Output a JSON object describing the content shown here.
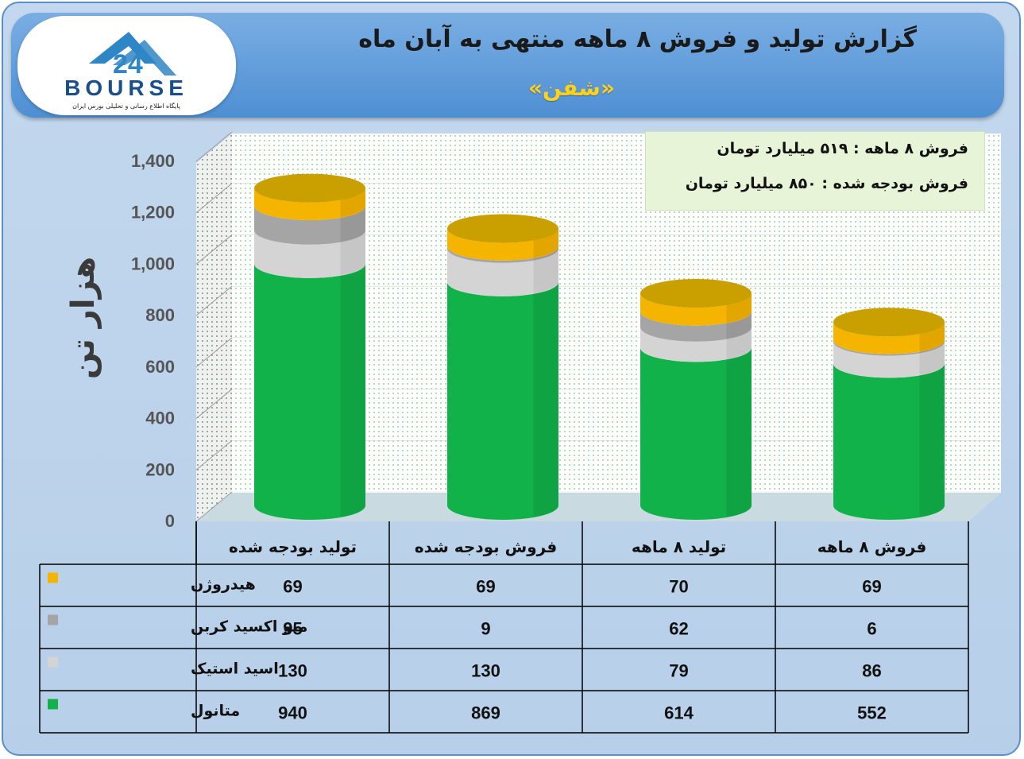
{
  "header": {
    "title": "گزارش تولید و فروش ۸ ماهه منتهی به آبان ماه",
    "subtitle": "«شفن»"
  },
  "logo": {
    "text": "BOURSE",
    "tagline": "پایگاه اطلاع رسانی و تحلیلی بورس ایران",
    "numeral": "24"
  },
  "info": {
    "line1": "فروش ۸ ماهه : ۵۱۹ میلیارد تومان",
    "line2": "فروش بودجه شده : ۸۵۰ میلیارد تومان"
  },
  "colors": {
    "methanol": "#12b24b",
    "acetic": "#d4d4d4",
    "co": "#a5a5a5",
    "hydrogen": "#f4b400",
    "hydrogen_top": "#c9a000"
  },
  "chart_data": {
    "type": "bar",
    "stacked": true,
    "ylabel": "هزار تن",
    "ylim": [
      0,
      1400
    ],
    "yticks": [
      "0",
      "200",
      "400",
      "600",
      "800",
      "1,000",
      "1,200",
      "1,400"
    ],
    "categories": [
      "تولید بودجه شده",
      "فروش بودجه شده",
      "تولید ۸ ماهه",
      "فروش ۸ ماهه"
    ],
    "series": [
      {
        "name": "متانول",
        "values": [
          940,
          869,
          614,
          552
        ]
      },
      {
        "name": "اسید استیک",
        "values": [
          130,
          130,
          79,
          86
        ]
      },
      {
        "name": "منو اکسید کربن",
        "values": [
          95,
          9,
          62,
          6
        ]
      },
      {
        "name": "هیدروژن",
        "values": [
          69,
          69,
          70,
          69
        ]
      }
    ],
    "table_row_order": [
      "هیدروژن",
      "منو اکسید کربن",
      "اسید استیک",
      "متانول"
    ]
  }
}
